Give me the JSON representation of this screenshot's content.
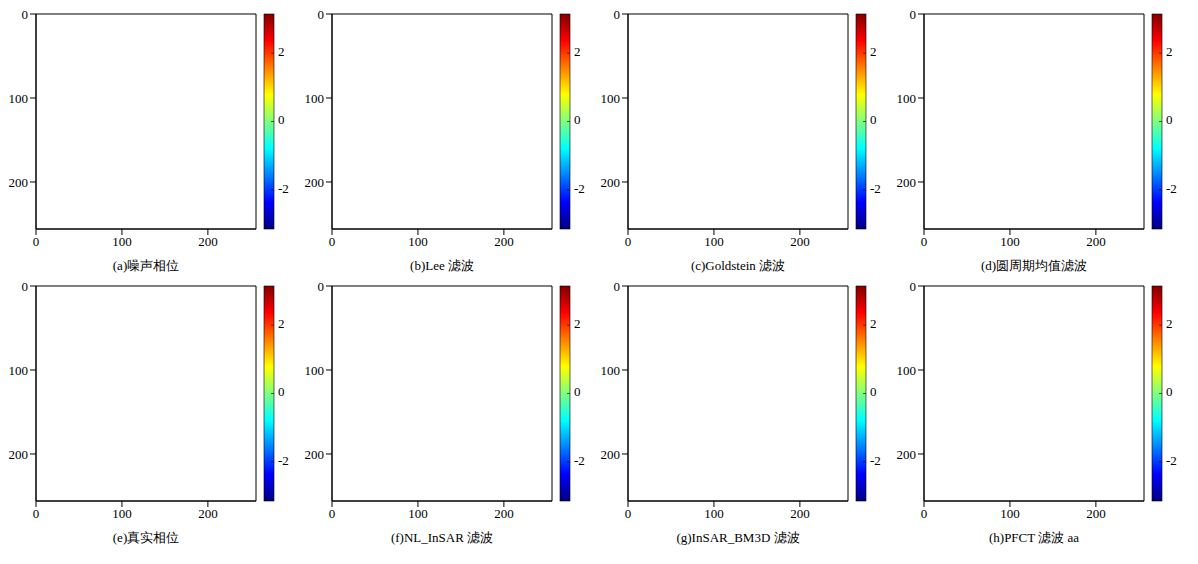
{
  "chart_data": [
    {
      "type": "heatmap",
      "title": "(a)噪声相位",
      "xlim": [
        0,
        256
      ],
      "ylim": [
        256,
        0
      ],
      "xticks": [
        0,
        100,
        200
      ],
      "yticks": [
        0,
        100,
        200
      ],
      "colorbar_range": [
        -3.1416,
        3.1416
      ],
      "colorbar_ticks": [
        -2,
        0,
        2
      ]
    },
    {
      "type": "heatmap",
      "title": "(b)Lee 滤波",
      "xlim": [
        0,
        256
      ],
      "ylim": [
        256,
        0
      ],
      "xticks": [
        0,
        100,
        200
      ],
      "yticks": [
        0,
        100,
        200
      ],
      "colorbar_range": [
        -3.1416,
        3.1416
      ],
      "colorbar_ticks": [
        -2,
        0,
        2
      ]
    },
    {
      "type": "heatmap",
      "title": "(c)Goldstein 滤波",
      "xlim": [
        0,
        256
      ],
      "ylim": [
        256,
        0
      ],
      "xticks": [
        0,
        100,
        200
      ],
      "yticks": [
        0,
        100,
        200
      ],
      "colorbar_range": [
        -3.1416,
        3.1416
      ],
      "colorbar_ticks": [
        -2,
        0,
        2
      ]
    },
    {
      "type": "heatmap",
      "title": "(d)圆周期均值滤波",
      "xlim": [
        0,
        256
      ],
      "ylim": [
        256,
        0
      ],
      "xticks": [
        0,
        100,
        200
      ],
      "yticks": [
        0,
        100,
        200
      ],
      "colorbar_range": [
        -3.1416,
        3.1416
      ],
      "colorbar_ticks": [
        -2,
        0,
        2
      ]
    },
    {
      "type": "heatmap",
      "title": "(e)真实相位",
      "xlim": [
        0,
        256
      ],
      "ylim": [
        256,
        0
      ],
      "xticks": [
        0,
        100,
        200
      ],
      "yticks": [
        0,
        100,
        200
      ],
      "colorbar_range": [
        -3.1416,
        3.1416
      ],
      "colorbar_ticks": [
        -2,
        0,
        2
      ]
    },
    {
      "type": "heatmap",
      "title": "(f)NL_InSAR 滤波",
      "xlim": [
        0,
        256
      ],
      "ylim": [
        256,
        0
      ],
      "xticks": [
        0,
        100,
        200
      ],
      "yticks": [
        0,
        100,
        200
      ],
      "colorbar_range": [
        -3.1416,
        3.1416
      ],
      "colorbar_ticks": [
        -2,
        0,
        2
      ]
    },
    {
      "type": "heatmap",
      "title": "(g)InSAR_BM3D 滤波",
      "xlim": [
        0,
        256
      ],
      "ylim": [
        256,
        0
      ],
      "xticks": [
        0,
        100,
        200
      ],
      "yticks": [
        0,
        100,
        200
      ],
      "colorbar_range": [
        -3.1416,
        3.1416
      ],
      "colorbar_ticks": [
        -2,
        0,
        2
      ]
    },
    {
      "type": "heatmap",
      "title": "(h)PFCT 滤波 aa",
      "xlim": [
        0,
        256
      ],
      "ylim": [
        256,
        0
      ],
      "xticks": [
        0,
        100,
        200
      ],
      "yticks": [
        0,
        100,
        200
      ],
      "colorbar_range": [
        -3.1416,
        3.1416
      ],
      "colorbar_ticks": [
        -2,
        0,
        2
      ]
    }
  ]
}
